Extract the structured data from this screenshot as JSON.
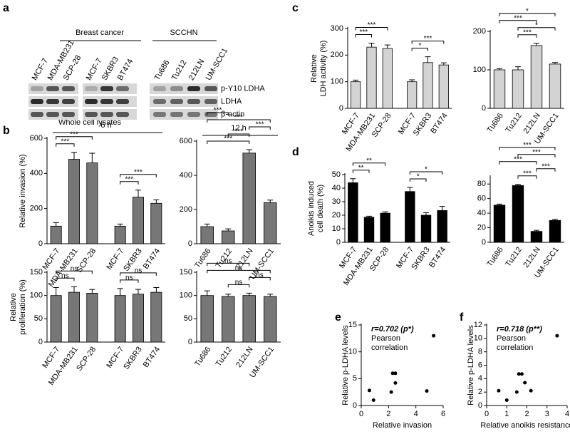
{
  "panels": [
    "a",
    "b",
    "c",
    "d",
    "e",
    "f"
  ],
  "blot": {
    "groups": [
      "Breast cancer",
      "SCCHN"
    ],
    "lanes": [
      "MCF-7",
      "MDA-MB231",
      "SCP-28",
      "MCF-7",
      "SKBR3",
      "BT474",
      "Tu686",
      "Tu212",
      "212LN",
      "UM-SCC1"
    ],
    "rows": [
      "p-Y10 LDHA",
      "LDHA",
      "β-actin"
    ],
    "footer": "Whole cell lysates"
  },
  "chart_data": [
    {
      "type": "bar",
      "heading": "6 h",
      "ylabel": [
        "Relative invasion (%)"
      ],
      "categories": [
        "MCF-7",
        "MDA-MB231",
        "SCP-28",
        "MCF-7",
        "SKBR3",
        "BT474"
      ],
      "values": [
        100,
        480,
        460,
        100,
        265,
        230
      ],
      "errors": [
        20,
        40,
        55,
        12,
        40,
        20
      ],
      "color": "#777777",
      "ylim": [
        0,
        600
      ],
      "yticks": [
        0,
        200,
        400,
        600
      ],
      "significance": [
        {
          "between": [
            0,
            1
          ],
          "label": "***"
        },
        {
          "between": [
            0,
            2
          ],
          "label": "***"
        },
        {
          "between": [
            3,
            4
          ],
          "label": "***"
        },
        {
          "between": [
            3,
            5
          ],
          "label": "***"
        }
      ]
    },
    {
      "type": "bar",
      "heading": "12 h",
      "ylabel": [],
      "categories": [
        "Tu686",
        "Tu212",
        "212LN",
        "UM-SCC1"
      ],
      "values": [
        100,
        75,
        530,
        240
      ],
      "errors": [
        15,
        12,
        20,
        15
      ],
      "color": "#777777",
      "ylim": [
        0,
        600
      ],
      "yticks": [
        0,
        200,
        400,
        600
      ],
      "significance": [
        {
          "between": [
            0,
            2
          ],
          "label": "***"
        },
        {
          "between": [
            1,
            2
          ],
          "label": "***"
        },
        {
          "between": [
            2,
            3
          ],
          "label": "***"
        },
        {
          "between": [
            0,
            3
          ],
          "label": "***"
        },
        {
          "between": [
            0,
            1
          ],
          "label": "***"
        }
      ]
    },
    {
      "type": "bar",
      "ylabel": [
        "Relative",
        "proliferation (%)"
      ],
      "categories": [
        "MCF-7",
        "MDA-MB231",
        "SCP-28",
        "MCF-7",
        "SKBR3",
        "BT474"
      ],
      "values": [
        100,
        107,
        105,
        100,
        103,
        107
      ],
      "errors": [
        17,
        12,
        8,
        15,
        10,
        10
      ],
      "color": "#777777",
      "ylim": [
        0,
        150
      ],
      "yticks": [
        0,
        50,
        100,
        150
      ],
      "significance": [
        {
          "between": [
            0,
            1
          ],
          "label": "ns"
        },
        {
          "between": [
            0,
            2
          ],
          "label": "ns"
        },
        {
          "between": [
            3,
            4
          ],
          "label": "ns"
        },
        {
          "between": [
            3,
            5
          ],
          "label": "ns"
        }
      ]
    },
    {
      "type": "bar",
      "ylabel": [],
      "categories": [
        "Tu686",
        "Tu212",
        "212LN",
        "UM-SCC1"
      ],
      "values": [
        100,
        98,
        100,
        98
      ],
      "errors": [
        10,
        5,
        5,
        5
      ],
      "color": "#777777",
      "ylim": [
        0,
        150
      ],
      "yticks": [
        0,
        50,
        100,
        150
      ],
      "significance": [
        {
          "between": [
            1,
            2
          ],
          "label": "ns"
        },
        {
          "between": [
            2,
            3
          ],
          "label": "ns"
        },
        {
          "between": [
            0,
            3
          ],
          "label": "ns"
        },
        {
          "between": [
            0,
            2
          ],
          "label": "ns"
        }
      ]
    },
    {
      "type": "bar",
      "ylabel": [
        "Relative",
        "LDH activity (%)"
      ],
      "categories": [
        "MCF-7",
        "MDA-MB231",
        "SCP-28",
        "MCF-7",
        "SKBR3",
        "BT474"
      ],
      "values": [
        100,
        230,
        225,
        100,
        172,
        163
      ],
      "errors": [
        6,
        15,
        13,
        7,
        22,
        8
      ],
      "color": "#d3d3d3",
      "ylim": [
        0,
        300
      ],
      "yticks": [
        0,
        100,
        200,
        300
      ],
      "significance": [
        {
          "between": [
            0,
            1
          ],
          "label": "***"
        },
        {
          "between": [
            0,
            2
          ],
          "label": "***"
        },
        {
          "between": [
            3,
            4
          ],
          "label": "*"
        },
        {
          "between": [
            3,
            5
          ],
          "label": "***"
        }
      ]
    },
    {
      "type": "bar",
      "ylabel": [],
      "categories": [
        "Tu686",
        "Tu212",
        "212LN",
        "UM-SCC1"
      ],
      "values": [
        100,
        100,
        163,
        115
      ],
      "errors": [
        3,
        8,
        6,
        4
      ],
      "color": "#d3d3d3",
      "ylim": [
        0,
        200
      ],
      "yticks": [
        0,
        100,
        200
      ],
      "significance": [
        {
          "between": [
            1,
            2
          ],
          "label": "***"
        },
        {
          "between": [
            1,
            3
          ],
          "label": "*"
        },
        {
          "between": [
            0,
            2
          ],
          "label": "***"
        },
        {
          "between": [
            0,
            3
          ],
          "label": "*"
        }
      ]
    },
    {
      "type": "bar",
      "ylabel": [
        "Anoikis induced",
        "cell death (%)"
      ],
      "categories": [
        "MCF-7",
        "MDA-MB231",
        "SCP-28",
        "MCF-7",
        "SKBR3",
        "BT474"
      ],
      "values": [
        44,
        18.5,
        21.5,
        37.5,
        20,
        23.5
      ],
      "errors": [
        3,
        0.8,
        1,
        3,
        2,
        3
      ],
      "color": "#000000",
      "ylim": [
        0,
        50
      ],
      "yticks": [
        0,
        10,
        20,
        30,
        40,
        50
      ],
      "significance": [
        {
          "between": [
            0,
            1
          ],
          "label": "**"
        },
        {
          "between": [
            0,
            2
          ],
          "label": "**"
        },
        {
          "between": [
            3,
            4
          ],
          "label": "*"
        },
        {
          "between": [
            3,
            5
          ],
          "label": "*"
        }
      ]
    },
    {
      "type": "bar",
      "ylabel": [],
      "categories": [
        "Tu686",
        "Tu212",
        "212LN",
        "UM-SCC1"
      ],
      "values": [
        51,
        78,
        15,
        30
      ],
      "errors": [
        1.5,
        1.5,
        1.5,
        1.5
      ],
      "color": "#000000",
      "ylim": [
        0,
        90
      ],
      "yticks": [
        0,
        20,
        40,
        60,
        80
      ],
      "significance": [
        {
          "between": [
            1,
            2
          ],
          "label": "***"
        },
        {
          "between": [
            2,
            3
          ],
          "label": "***"
        },
        {
          "between": [
            0,
            2
          ],
          "label": "***"
        },
        {
          "between": [
            1,
            3
          ],
          "label": "***"
        },
        {
          "between": [
            0,
            3
          ],
          "label": "***"
        }
      ]
    },
    {
      "type": "scatter",
      "xlabel": "Relative invasion",
      "ylabel": [
        "Relative p-LDHA levels"
      ],
      "annotation": [
        "r=0.702 (p*)",
        "Pearson",
        "correlation"
      ],
      "x": [
        0.6,
        0.9,
        2.2,
        2.3,
        2.5,
        2.5,
        4.8,
        5.3
      ],
      "values": [
        2.8,
        1,
        2.5,
        6,
        6,
        4.2,
        2.7,
        13
      ],
      "color": "#000000",
      "xlim": [
        0,
        6
      ],
      "xticks": [
        0,
        2,
        4,
        6
      ],
      "ylim": [
        0,
        15
      ],
      "yticks": [
        0,
        5,
        10,
        15
      ]
    },
    {
      "type": "scatter",
      "xlabel": "Relative anoikis resistance",
      "ylabel": [
        "Relative p-LDHA levels"
      ],
      "annotation": [
        "r=0.718 (p**)",
        "Pearson",
        "correlation"
      ],
      "x": [
        0.6,
        1,
        1.5,
        1.6,
        1.75,
        1.9,
        2.2,
        3.5
      ],
      "values": [
        2.2,
        0.8,
        2,
        4.7,
        4.7,
        3.4,
        2.2,
        10.4
      ],
      "color": "#000000",
      "xlim": [
        0,
        4
      ],
      "xticks": [
        0,
        1,
        2,
        3,
        4
      ],
      "ylim": [
        0,
        12
      ],
      "yticks": [
        0,
        2,
        4,
        6,
        8,
        10,
        12
      ]
    }
  ]
}
